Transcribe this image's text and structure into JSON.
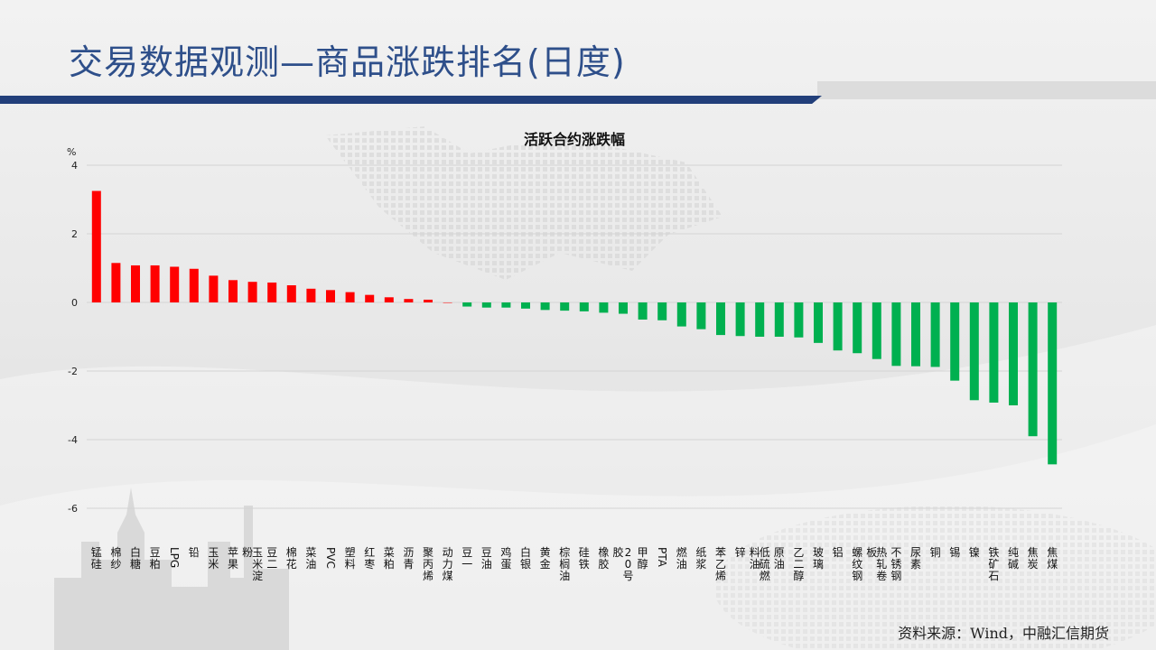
{
  "page": {
    "title": "交易数据观测—商品涨跌排名(日度)",
    "source": "资料来源：Wind，中融汇信期货"
  },
  "colors": {
    "title": "#2e4f8a",
    "title_bar": "#223f7a",
    "positive": "#ff0000",
    "negative": "#00b050"
  },
  "chart_data": {
    "type": "bar",
    "title": "活跃合约涨跌幅",
    "ylabel": "%",
    "ylim": [
      -6,
      4
    ],
    "yticks": [
      4,
      2,
      0,
      -2,
      -4,
      -6
    ],
    "grid": true,
    "categories": [
      "锰硅",
      "棉纱",
      "白糖",
      "豆粕",
      "LPG",
      "铅",
      "玉米",
      "苹果",
      "玉米淀粉",
      "豆二",
      "棉花",
      "菜油",
      "PVC",
      "塑料",
      "红枣",
      "菜粕",
      "沥青",
      "聚丙烯",
      "动力煤",
      "豆一",
      "豆油",
      "鸡蛋",
      "白银",
      "黄金",
      "棕榈油",
      "硅铁",
      "橡胶",
      "20号胶",
      "甲醇",
      "PTA",
      "燃油",
      "纸浆",
      "苯乙烯",
      "锌",
      "低硫燃料油",
      "原油",
      "乙二醇",
      "玻璃",
      "铝",
      "螺纹钢",
      "热轧卷板",
      "不锈钢",
      "尿素",
      "铜",
      "锡",
      "镍",
      "铁矿石",
      "纯碱",
      "焦炭",
      "焦煤"
    ],
    "values": [
      3.25,
      1.15,
      1.08,
      1.08,
      1.04,
      0.98,
      0.78,
      0.65,
      0.6,
      0.58,
      0.5,
      0.4,
      0.36,
      0.3,
      0.22,
      0.15,
      0.1,
      0.08,
      0,
      -0.12,
      -0.15,
      -0.15,
      -0.18,
      -0.22,
      -0.24,
      -0.26,
      -0.3,
      -0.33,
      -0.5,
      -0.52,
      -0.7,
      -0.78,
      -0.95,
      -0.98,
      -1.0,
      -1.0,
      -1.02,
      -1.18,
      -1.4,
      -1.48,
      -1.65,
      -1.85,
      -1.86,
      -1.88,
      -2.28,
      -2.85,
      -2.92,
      -3.0,
      -3.9,
      -4.72
    ]
  }
}
